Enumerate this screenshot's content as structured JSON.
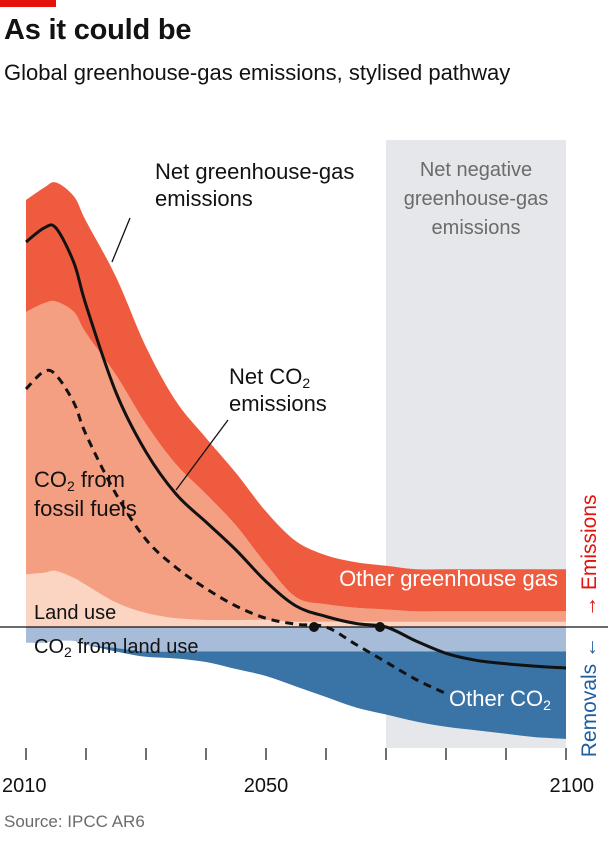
{
  "header": {
    "title": "As it could be",
    "subtitle": "Global greenhouse-gas emissions, stylised pathway"
  },
  "source": "Source: IPCC AR6",
  "colors": {
    "brand_red": "#e3120b",
    "other_ghg": "#ef5b3f",
    "co2_fossil": "#f59f82",
    "land_use_emissions": "#fbd4c2",
    "co2_land_use_removal": "#a6bcd8",
    "other_co2_removal": "#3a73a6",
    "net_negative_shade": "#e6e7ea",
    "emissions_axis": "#e3120b",
    "removals_axis": "#1f5fa0"
  },
  "chart_data": {
    "type": "area",
    "x_axis": {
      "min": 2010,
      "max": 2100,
      "ticks": [
        2010,
        2020,
        2030,
        2040,
        2050,
        2060,
        2070,
        2080,
        2090,
        2100
      ],
      "tick_labels": [
        "2010",
        "2050",
        "2100"
      ]
    },
    "y_axis": {
      "min": -34,
      "max": 140,
      "scale": "stylised"
    },
    "shaded_region": {
      "x_start": 2070,
      "x_end": 2100,
      "label": "Net negative greenhouse-gas emissions"
    },
    "x": [
      2010,
      2013,
      2015,
      2018,
      2020,
      2025,
      2030,
      2035,
      2040,
      2045,
      2050,
      2055,
      2060,
      2065,
      2070,
      2075,
      2080,
      2085,
      2090,
      2095,
      2100
    ],
    "series": [
      {
        "name": "Land use",
        "values": [
          15,
          15.5,
          16,
          14,
          12,
          7,
          4,
          2.5,
          2,
          2,
          2,
          1.5,
          1.5,
          1.5,
          1.5,
          1.5,
          1.5,
          1.5,
          1.5,
          1.5,
          1.5
        ]
      },
      {
        "name": "CO2 from fossil fuels",
        "values": [
          75,
          77,
          77,
          76,
          72,
          65,
          54,
          44,
          36,
          27,
          16,
          7,
          5,
          4,
          3.5,
          3,
          3,
          3,
          3,
          3,
          3
        ]
      },
      {
        "name": "Other greenhouse gas",
        "values": [
          32,
          33,
          34,
          33,
          32,
          28,
          22,
          18,
          16,
          15,
          15,
          16,
          14,
          13,
          12.5,
          12,
          12,
          12,
          12,
          12,
          12
        ]
      },
      {
        "name": "CO2 from land use",
        "values": [
          -4.5,
          -4.5,
          -4,
          -4,
          -5,
          -6,
          -7,
          -7,
          -7,
          -7,
          -7,
          -7,
          -7,
          -7,
          -7,
          -7,
          -7,
          -7,
          -7,
          -7,
          -7
        ]
      },
      {
        "name": "Other CO2",
        "values": [
          0,
          0,
          0,
          0,
          0,
          -1,
          -1.5,
          -2,
          -3,
          -5,
          -7,
          -10,
          -13,
          -16,
          -18,
          -20,
          -21.5,
          -22.5,
          -23.5,
          -24.5,
          -25
        ]
      }
    ],
    "lines": [
      {
        "name": "Net greenhouse-gas emissions",
        "style": "solid",
        "x": [
          2010,
          2013,
          2015,
          2018,
          2020,
          2025,
          2030,
          2035,
          2040,
          2045,
          2050,
          2055,
          2060,
          2065,
          2070,
          2075,
          2080,
          2085,
          2090,
          2095,
          2100
        ],
        "values": [
          110,
          114,
          114,
          104,
          92,
          67,
          50,
          38,
          30,
          22,
          13,
          6,
          3,
          1,
          0,
          -4,
          -7.5,
          -9.5,
          -10.5,
          -11.2,
          -11.7
        ]
      },
      {
        "name": "Net CO2 emissions",
        "style": "dashed",
        "x": [
          2010,
          2013,
          2015,
          2018,
          2020,
          2025,
          2030,
          2035,
          2040,
          2045,
          2050,
          2055,
          2060,
          2065,
          2070,
          2075,
          2080
        ],
        "values": [
          68,
          73,
          72,
          64,
          55,
          38,
          25,
          17,
          11,
          6,
          2.5,
          0.8,
          0,
          -5,
          -10,
          -15,
          -19
        ]
      }
    ],
    "markers": [
      {
        "label": "net CO2 zero",
        "x": 2058,
        "y": 0
      },
      {
        "label": "net greenhouse-gas zero",
        "x": 2069,
        "y": 0
      }
    ],
    "annotations": {
      "net_ghg": [
        "Net greenhouse-gas",
        "emissions"
      ],
      "net_co2_l1_main": "Net CO",
      "net_co2_l1_sub": "2",
      "net_co2_l2": "emissions",
      "fossil_l1_main": "CO",
      "fossil_l1_sub": "2",
      "fossil_l1_rest": " from",
      "fossil_l2": "fossil fuels",
      "land_use": "Land use",
      "land_use_removal_main": "CO",
      "land_use_removal_sub": "2",
      "land_use_removal_rest": " from land use",
      "other_ghg": "Other greenhouse gas",
      "other_co2_main": "Other CO",
      "other_co2_sub": "2",
      "net_negative": [
        "Net negative",
        "greenhouse-gas",
        "emissions"
      ]
    },
    "side_axis": {
      "removals": "Removals",
      "removals_arrow": "←",
      "emissions_arrow": "→",
      "emissions": "Emissions"
    }
  }
}
